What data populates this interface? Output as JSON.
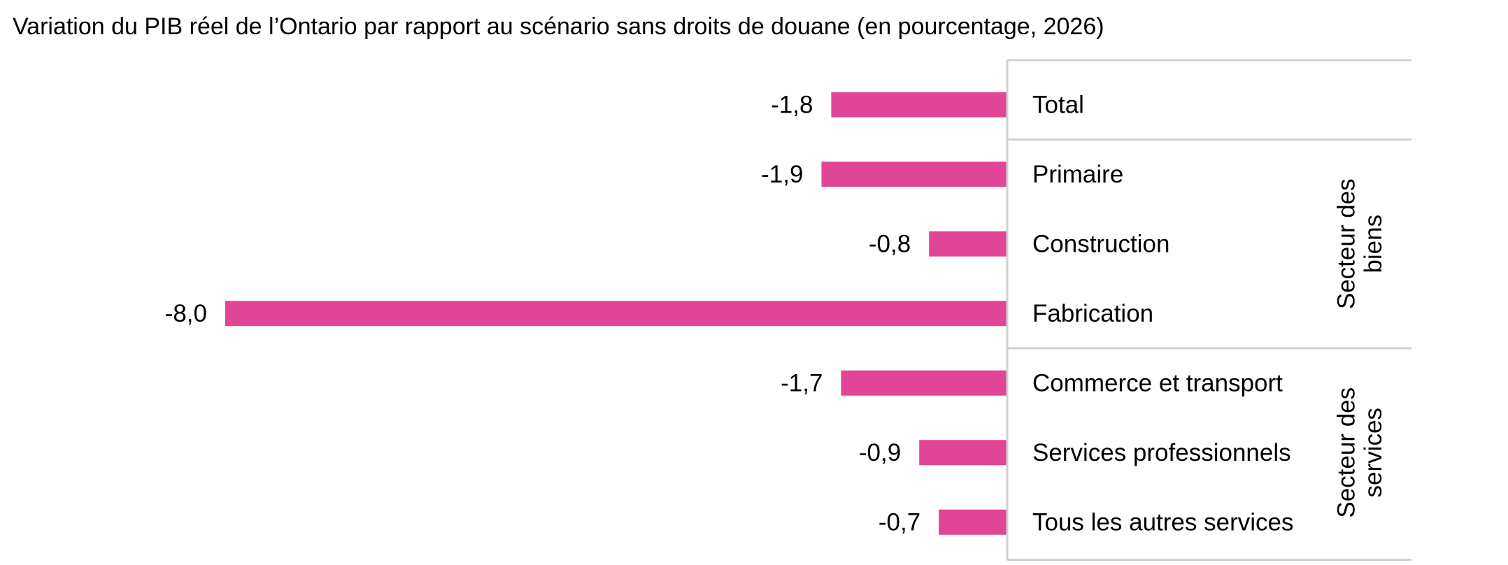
{
  "chart_data": {
    "type": "bar",
    "orientation": "horizontal",
    "title": "Variation du PIB réel de l’Ontario par rapport au scénario sans droits de douane (en pourcentage, 2026)",
    "categories": [
      "Total",
      "Primaire",
      "Construction",
      "Fabrication",
      "Commerce et transport",
      "Services professionnels",
      "Tous les autres services"
    ],
    "values": [
      -1.8,
      -1.9,
      -0.8,
      -8.0,
      -1.7,
      -0.9,
      -0.7
    ],
    "value_labels": [
      "-1,8",
      "-1,9",
      "-0,8",
      "-8,0",
      "-1,7",
      "-0,9",
      "-0,7"
    ],
    "groups": [
      {
        "label_lines": [
          "Secteur des",
          "biens"
        ],
        "categories": [
          "Primaire",
          "Construction",
          "Fabrication"
        ]
      },
      {
        "label_lines": [
          "Secteur des",
          "services"
        ],
        "categories": [
          "Commerce et transport",
          "Services professionnels",
          "Tous les autres services"
        ]
      }
    ],
    "xlim": [
      -8.0,
      0
    ],
    "grid": false,
    "legend": "none",
    "colors": {
      "bar": "#e14595"
    }
  }
}
